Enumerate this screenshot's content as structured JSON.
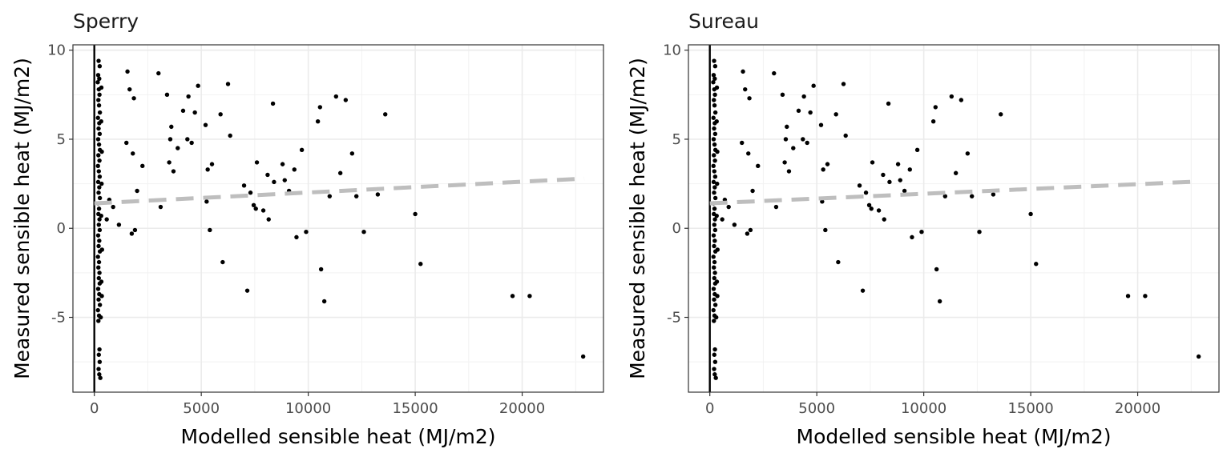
{
  "chart_data": [
    {
      "type": "scatter",
      "title": "Sperry",
      "xlabel": "Modelled sensible heat (MJ/m2)",
      "ylabel": "Measured sensible heat (MJ/m2)",
      "xlim": [
        -1000,
        23800
      ],
      "ylim": [
        -9.2,
        10.3
      ],
      "xticks": [
        0,
        5000,
        10000,
        15000,
        20000
      ],
      "xtick_labels": [
        "0",
        "5000",
        "10000",
        "15000",
        "20000"
      ],
      "yticks": [
        -5,
        0,
        5,
        10
      ],
      "ytick_labels": [
        "-5",
        "0",
        "5",
        "10"
      ],
      "grid": true,
      "reference_line": {
        "type": "vline",
        "x": 0,
        "color": "#000000"
      },
      "trend_line": {
        "style": "dashed",
        "color": "#bebebe",
        "intercept": 1.4,
        "slope": 6.08e-05
      },
      "point_color": "#000000",
      "points": [
        [
          200,
          9.4
        ],
        [
          250,
          9.1
        ],
        [
          180,
          8.6
        ],
        [
          230,
          8.4
        ],
        [
          160,
          8.2
        ],
        [
          210,
          7.8
        ],
        [
          240,
          7.5
        ],
        [
          190,
          7.2
        ],
        [
          220,
          6.9
        ],
        [
          260,
          6.5
        ],
        [
          170,
          6.2
        ],
        [
          230,
          5.9
        ],
        [
          200,
          5.6
        ],
        [
          250,
          5.3
        ],
        [
          180,
          5.0
        ],
        [
          220,
          4.7
        ],
        [
          260,
          4.4
        ],
        [
          190,
          4.1
        ],
        [
          240,
          3.8
        ],
        [
          170,
          3.5
        ],
        [
          210,
          3.2
        ],
        [
          250,
          2.9
        ],
        [
          180,
          2.6
        ],
        [
          230,
          2.3
        ],
        [
          200,
          2.0
        ],
        [
          260,
          1.7
        ],
        [
          170,
          1.4
        ],
        [
          220,
          1.1
        ],
        [
          190,
          0.8
        ],
        [
          240,
          0.5
        ],
        [
          210,
          0.2
        ],
        [
          250,
          -0.1
        ],
        [
          180,
          -0.4
        ],
        [
          230,
          -0.7
        ],
        [
          200,
          -1.0
        ],
        [
          260,
          -1.3
        ],
        [
          170,
          -1.6
        ],
        [
          220,
          -1.9
        ],
        [
          190,
          -2.2
        ],
        [
          240,
          -2.5
        ],
        [
          210,
          -2.8
        ],
        [
          250,
          -3.1
        ],
        [
          180,
          -3.4
        ],
        [
          230,
          -3.7
        ],
        [
          200,
          -4.0
        ],
        [
          260,
          -4.3
        ],
        [
          170,
          -4.6
        ],
        [
          220,
          -4.9
        ],
        [
          190,
          -5.2
        ],
        [
          240,
          -6.8
        ],
        [
          210,
          -7.1
        ],
        [
          250,
          -7.5
        ],
        [
          200,
          -7.9
        ],
        [
          230,
          -8.2
        ],
        [
          280,
          -8.4
        ],
        [
          330,
          7.9
        ],
        [
          320,
          6.0
        ],
        [
          350,
          4.3
        ],
        [
          340,
          2.5
        ],
        [
          320,
          0.7
        ],
        [
          360,
          -1.2
        ],
        [
          330,
          -3.0
        ],
        [
          350,
          -3.8
        ],
        [
          300,
          -5.0
        ],
        [
          580,
          0.5
        ],
        [
          700,
          1.6
        ],
        [
          880,
          1.2
        ],
        [
          1150,
          0.2
        ],
        [
          1500,
          4.8
        ],
        [
          1550,
          8.8
        ],
        [
          1650,
          7.8
        ],
        [
          1750,
          -0.3
        ],
        [
          1800,
          4.2
        ],
        [
          1850,
          7.3
        ],
        [
          1900,
          -0.1
        ],
        [
          2000,
          2.1
        ],
        [
          2250,
          3.5
        ],
        [
          3000,
          8.7
        ],
        [
          3100,
          1.2
        ],
        [
          3400,
          7.5
        ],
        [
          3500,
          3.7
        ],
        [
          3550,
          5.0
        ],
        [
          3600,
          5.7
        ],
        [
          3700,
          3.2
        ],
        [
          3900,
          4.5
        ],
        [
          4150,
          6.6
        ],
        [
          4350,
          5.0
        ],
        [
          4400,
          7.4
        ],
        [
          4550,
          4.8
        ],
        [
          4700,
          6.5
        ],
        [
          4850,
          8.0
        ],
        [
          5200,
          5.8
        ],
        [
          5250,
          1.5
        ],
        [
          5300,
          3.3
        ],
        [
          5400,
          -0.1
        ],
        [
          5500,
          3.6
        ],
        [
          5900,
          6.4
        ],
        [
          6000,
          -1.9
        ],
        [
          6250,
          8.1
        ],
        [
          6350,
          5.2
        ],
        [
          7000,
          2.4
        ],
        [
          7150,
          -3.5
        ],
        [
          7300,
          2.0
        ],
        [
          7450,
          1.3
        ],
        [
          7550,
          1.1
        ],
        [
          7600,
          3.7
        ],
        [
          7900,
          1.0
        ],
        [
          8100,
          3.0
        ],
        [
          8150,
          0.5
        ],
        [
          8350,
          7.0
        ],
        [
          8400,
          2.6
        ],
        [
          8800,
          3.6
        ],
        [
          8900,
          2.7
        ],
        [
          9100,
          2.1
        ],
        [
          9350,
          3.3
        ],
        [
          9450,
          -0.5
        ],
        [
          9700,
          4.4
        ],
        [
          9900,
          -0.2
        ],
        [
          10450,
          6.0
        ],
        [
          10550,
          6.8
        ],
        [
          10600,
          -2.3
        ],
        [
          10750,
          -4.1
        ],
        [
          11000,
          1.8
        ],
        [
          11300,
          7.4
        ],
        [
          11500,
          3.1
        ],
        [
          11750,
          7.2
        ],
        [
          12050,
          4.2
        ],
        [
          12250,
          1.8
        ],
        [
          12600,
          -0.2
        ],
        [
          13250,
          1.9
        ],
        [
          13600,
          6.4
        ],
        [
          15000,
          0.8
        ],
        [
          15250,
          -2.0
        ],
        [
          19550,
          -3.8
        ],
        [
          20350,
          -3.8
        ],
        [
          22850,
          -7.2
        ]
      ]
    },
    {
      "type": "scatter",
      "title": "Sureau",
      "xlabel": "Modelled sensible heat (MJ/m2)",
      "ylabel": "Measured sensible heat (MJ/m2)",
      "xlim": [
        -1000,
        23800
      ],
      "ylim": [
        -9.2,
        10.3
      ],
      "xticks": [
        0,
        5000,
        10000,
        15000,
        20000
      ],
      "xtick_labels": [
        "0",
        "5000",
        "10000",
        "15000",
        "20000"
      ],
      "yticks": [
        -5,
        0,
        5,
        10
      ],
      "ytick_labels": [
        "-5",
        "0",
        "5",
        "10"
      ],
      "grid": true,
      "reference_line": {
        "type": "vline",
        "x": 0,
        "color": "#000000"
      },
      "trend_line": {
        "style": "dashed",
        "color": "#bebebe",
        "intercept": 1.4,
        "slope": 5.38e-05
      },
      "point_color": "#000000",
      "points": [
        [
          200,
          9.4
        ],
        [
          250,
          9.1
        ],
        [
          180,
          8.6
        ],
        [
          230,
          8.4
        ],
        [
          160,
          8.2
        ],
        [
          210,
          7.8
        ],
        [
          240,
          7.5
        ],
        [
          190,
          7.2
        ],
        [
          220,
          6.9
        ],
        [
          260,
          6.5
        ],
        [
          170,
          6.2
        ],
        [
          230,
          5.9
        ],
        [
          200,
          5.6
        ],
        [
          250,
          5.3
        ],
        [
          180,
          5.0
        ],
        [
          220,
          4.7
        ],
        [
          260,
          4.4
        ],
        [
          190,
          4.1
        ],
        [
          240,
          3.8
        ],
        [
          170,
          3.5
        ],
        [
          210,
          3.2
        ],
        [
          250,
          2.9
        ],
        [
          180,
          2.6
        ],
        [
          230,
          2.3
        ],
        [
          200,
          2.0
        ],
        [
          260,
          1.7
        ],
        [
          170,
          1.4
        ],
        [
          220,
          1.1
        ],
        [
          190,
          0.8
        ],
        [
          240,
          0.5
        ],
        [
          210,
          0.2
        ],
        [
          250,
          -0.1
        ],
        [
          180,
          -0.4
        ],
        [
          230,
          -0.7
        ],
        [
          200,
          -1.0
        ],
        [
          260,
          -1.3
        ],
        [
          170,
          -1.6
        ],
        [
          220,
          -1.9
        ],
        [
          190,
          -2.2
        ],
        [
          240,
          -2.5
        ],
        [
          210,
          -2.8
        ],
        [
          250,
          -3.1
        ],
        [
          180,
          -3.4
        ],
        [
          230,
          -3.7
        ],
        [
          200,
          -4.0
        ],
        [
          260,
          -4.3
        ],
        [
          170,
          -4.6
        ],
        [
          220,
          -4.9
        ],
        [
          190,
          -5.2
        ],
        [
          240,
          -6.8
        ],
        [
          210,
          -7.1
        ],
        [
          250,
          -7.5
        ],
        [
          200,
          -7.9
        ],
        [
          230,
          -8.2
        ],
        [
          280,
          -8.4
        ],
        [
          330,
          7.9
        ],
        [
          320,
          6.0
        ],
        [
          350,
          4.3
        ],
        [
          340,
          2.5
        ],
        [
          320,
          0.7
        ],
        [
          360,
          -1.2
        ],
        [
          330,
          -3.0
        ],
        [
          350,
          -3.8
        ],
        [
          300,
          -5.0
        ],
        [
          580,
          0.5
        ],
        [
          700,
          1.6
        ],
        [
          880,
          1.2
        ],
        [
          1150,
          0.2
        ],
        [
          1500,
          4.8
        ],
        [
          1550,
          8.8
        ],
        [
          1650,
          7.8
        ],
        [
          1750,
          -0.3
        ],
        [
          1800,
          4.2
        ],
        [
          1850,
          7.3
        ],
        [
          1900,
          -0.1
        ],
        [
          2000,
          2.1
        ],
        [
          2250,
          3.5
        ],
        [
          3000,
          8.7
        ],
        [
          3100,
          1.2
        ],
        [
          3400,
          7.5
        ],
        [
          3500,
          3.7
        ],
        [
          3550,
          5.0
        ],
        [
          3600,
          5.7
        ],
        [
          3700,
          3.2
        ],
        [
          3900,
          4.5
        ],
        [
          4150,
          6.6
        ],
        [
          4350,
          5.0
        ],
        [
          4400,
          7.4
        ],
        [
          4550,
          4.8
        ],
        [
          4700,
          6.5
        ],
        [
          4850,
          8.0
        ],
        [
          5200,
          5.8
        ],
        [
          5250,
          1.5
        ],
        [
          5300,
          3.3
        ],
        [
          5400,
          -0.1
        ],
        [
          5500,
          3.6
        ],
        [
          5900,
          6.4
        ],
        [
          6000,
          -1.9
        ],
        [
          6250,
          8.1
        ],
        [
          6350,
          5.2
        ],
        [
          7000,
          2.4
        ],
        [
          7150,
          -3.5
        ],
        [
          7300,
          2.0
        ],
        [
          7450,
          1.3
        ],
        [
          7550,
          1.1
        ],
        [
          7600,
          3.7
        ],
        [
          7900,
          1.0
        ],
        [
          8100,
          3.0
        ],
        [
          8150,
          0.5
        ],
        [
          8350,
          7.0
        ],
        [
          8400,
          2.6
        ],
        [
          8800,
          3.6
        ],
        [
          8900,
          2.7
        ],
        [
          9100,
          2.1
        ],
        [
          9350,
          3.3
        ],
        [
          9450,
          -0.5
        ],
        [
          9700,
          4.4
        ],
        [
          9900,
          -0.2
        ],
        [
          10450,
          6.0
        ],
        [
          10550,
          6.8
        ],
        [
          10600,
          -2.3
        ],
        [
          10750,
          -4.1
        ],
        [
          11000,
          1.8
        ],
        [
          11300,
          7.4
        ],
        [
          11500,
          3.1
        ],
        [
          11750,
          7.2
        ],
        [
          12050,
          4.2
        ],
        [
          12250,
          1.8
        ],
        [
          12600,
          -0.2
        ],
        [
          13250,
          1.9
        ],
        [
          13600,
          6.4
        ],
        [
          15000,
          0.8
        ],
        [
          15250,
          -2.0
        ],
        [
          19550,
          -3.8
        ],
        [
          20350,
          -3.8
        ],
        [
          22850,
          -7.2
        ]
      ]
    }
  ]
}
